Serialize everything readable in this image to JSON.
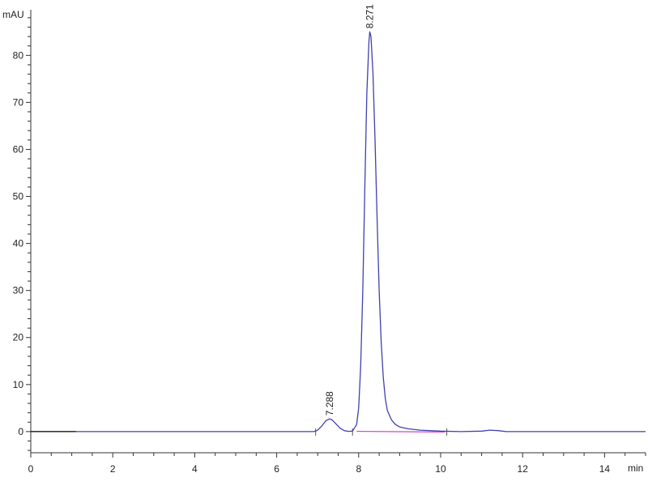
{
  "chart_data": {
    "type": "line",
    "title": "",
    "xlabel": "min",
    "ylabel": "mAU",
    "xlim": [
      0,
      15
    ],
    "ylim": [
      -4.5,
      89.7
    ],
    "x_ticks": [
      0,
      2,
      4,
      6,
      8,
      10,
      12,
      14
    ],
    "y_ticks": [
      0,
      10,
      20,
      30,
      40,
      50,
      60,
      70,
      80
    ],
    "grid": false,
    "colors": {
      "trace": "#4040b0",
      "baseline": "#d040d0",
      "axis": "#333333"
    },
    "peaks": [
      {
        "label": "7.288",
        "x": 7.288,
        "y": 2.7
      },
      {
        "label": "8.271",
        "x": 8.271,
        "y": 85
      }
    ],
    "integration_baseline": [
      [
        7.95,
        0.05
      ],
      [
        10.1,
        -0.1
      ]
    ],
    "series": [
      {
        "x": [
          0,
          6.9,
          6.95,
          7.0,
          7.1,
          7.2,
          7.288,
          7.35,
          7.45,
          7.55,
          7.65,
          7.75,
          7.85,
          7.95,
          8.0,
          8.05,
          8.1,
          8.15,
          8.2,
          8.25,
          8.271,
          8.3,
          8.35,
          8.4,
          8.45,
          8.5,
          8.55,
          8.6,
          8.65,
          8.7,
          8.8,
          8.9,
          9.0,
          9.2,
          9.5,
          10.0,
          10.5,
          11.0,
          11.2,
          11.4,
          11.6,
          15
        ],
        "y": [
          0,
          0,
          0.1,
          0.3,
          1.2,
          2.3,
          2.7,
          2.5,
          1.6,
          0.7,
          0.2,
          0.05,
          0.1,
          1.5,
          5,
          14,
          30,
          52,
          72,
          83,
          85,
          84,
          76,
          62,
          45,
          30,
          19,
          11.5,
          7,
          4.5,
          2.5,
          1.5,
          1.0,
          0.6,
          0.3,
          0.1,
          0,
          0.1,
          0.3,
          0.2,
          0,
          0
        ]
      }
    ]
  }
}
